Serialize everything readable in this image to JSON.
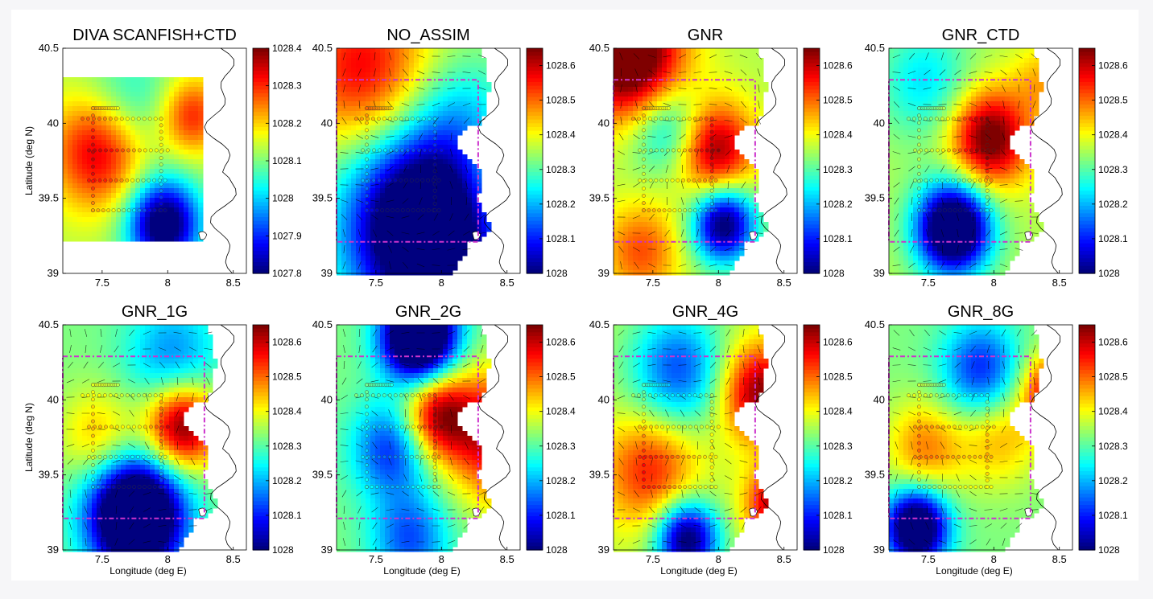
{
  "figure": {
    "ylabel": "Latitude (deg N)",
    "xlabel": "Longitude (deg E)",
    "x_ticks": [
      "7.5",
      "8",
      "8.5"
    ],
    "y_ticks": [
      "39",
      "39.5",
      "40",
      "40.5"
    ],
    "colormap": [
      "#00007f",
      "#0000ff",
      "#007fff",
      "#00ffff",
      "#7fff7f",
      "#ffff00",
      "#ff7f00",
      "#ff0000",
      "#7f0000"
    ],
    "box_color": "#cc33cc"
  },
  "chart_data": [
    {
      "type": "heatmap",
      "title": "DIVA SCANFISH+CTD",
      "xlim": [
        7.2,
        8.6
      ],
      "ylim": [
        39,
        40.5
      ],
      "colorbar_ticks": [
        "1028.4",
        "1028.3",
        "1028.2",
        "1028.1",
        "1028",
        "1027.9",
        "1027.8"
      ],
      "clim": [
        1027.8,
        1028.4
      ],
      "vectors": false
    },
    {
      "type": "heatmap",
      "title": "NO_ASSIM",
      "xlim": [
        7.2,
        8.6
      ],
      "ylim": [
        39,
        40.5
      ],
      "colorbar_ticks": [
        "1028.6",
        "1028.5",
        "1028.4",
        "1028.3",
        "1028.2",
        "1028.1",
        "1028"
      ],
      "clim": [
        1028,
        1028.65
      ],
      "vectors": true
    },
    {
      "type": "heatmap",
      "title": "GNR",
      "xlim": [
        7.2,
        8.6
      ],
      "ylim": [
        39,
        40.5
      ],
      "colorbar_ticks": [
        "1028.6",
        "1028.5",
        "1028.4",
        "1028.3",
        "1028.2",
        "1028.1",
        "1028"
      ],
      "clim": [
        1028,
        1028.65
      ],
      "vectors": true
    },
    {
      "type": "heatmap",
      "title": "GNR_CTD",
      "xlim": [
        7.2,
        8.6
      ],
      "ylim": [
        39,
        40.5
      ],
      "colorbar_ticks": [
        "1028.6",
        "1028.5",
        "1028.4",
        "1028.3",
        "1028.2",
        "1028.1",
        "1028"
      ],
      "clim": [
        1028,
        1028.65
      ],
      "vectors": true
    },
    {
      "type": "heatmap",
      "title": "GNR_1G",
      "xlim": [
        7.2,
        8.6
      ],
      "ylim": [
        39,
        40.5
      ],
      "colorbar_ticks": [
        "1028.6",
        "1028.5",
        "1028.4",
        "1028.3",
        "1028.2",
        "1028.1",
        "1028"
      ],
      "clim": [
        1028,
        1028.65
      ],
      "vectors": true
    },
    {
      "type": "heatmap",
      "title": "GNR_2G",
      "xlim": [
        7.2,
        8.6
      ],
      "ylim": [
        39,
        40.5
      ],
      "colorbar_ticks": [
        "1028.6",
        "1028.5",
        "1028.4",
        "1028.3",
        "1028.2",
        "1028.1",
        "1028"
      ],
      "clim": [
        1028,
        1028.65
      ],
      "vectors": true
    },
    {
      "type": "heatmap",
      "title": "GNR_4G",
      "xlim": [
        7.2,
        8.6
      ],
      "ylim": [
        39,
        40.5
      ],
      "colorbar_ticks": [
        "1028.6",
        "1028.5",
        "1028.4",
        "1028.3",
        "1028.2",
        "1028.1",
        "1028"
      ],
      "clim": [
        1028,
        1028.65
      ],
      "vectors": true
    },
    {
      "type": "heatmap",
      "title": "GNR_8G",
      "xlim": [
        7.2,
        8.6
      ],
      "ylim": [
        39,
        40.5
      ],
      "colorbar_ticks": [
        "1028.6",
        "1028.5",
        "1028.4",
        "1028.3",
        "1028.2",
        "1028.1",
        "1028"
      ],
      "clim": [
        1028,
        1028.65
      ],
      "vectors": true
    }
  ]
}
